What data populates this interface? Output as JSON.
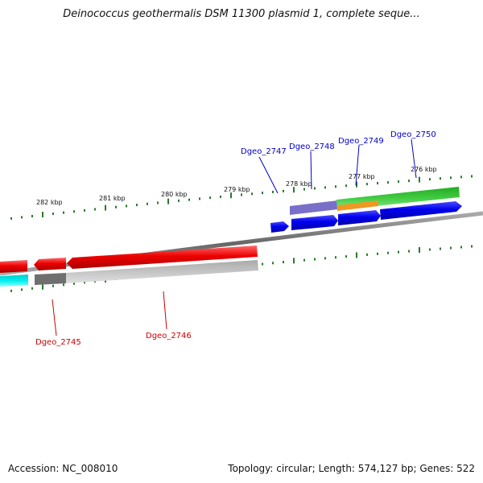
{
  "title": "Deinococcus geothermalis DSM 11300 plasmid 1, complete seque...",
  "footer": {
    "accession": "Accession: NC_008010",
    "summary": "Topology: circular; Length: 574,127 bp; Genes: 522"
  },
  "scale_ticks": [
    "282 kbp",
    "281 kbp",
    "280 kbp",
    "279 kbp",
    "278 kbp",
    "277 kbp",
    "276 kbp"
  ],
  "gene_labels": {
    "top": [
      "Dgeo_2747",
      "Dgeo_2748",
      "Dgeo_2749",
      "Dgeo_2750"
    ],
    "bottom": [
      "Dgeo_2745",
      "Dgeo_2746"
    ]
  },
  "colors": {
    "forward_cds": "#0000ee",
    "reverse_cds": "#ee0000",
    "top_label": "#0000cc",
    "bottom_label": "#cc0000",
    "tick": "#2a7a2a",
    "backbone": "#888888",
    "green_feature": "#33bb33",
    "orange_feature": "#ee9922",
    "purple_feature": "#6655bb",
    "cyan_feature": "#00dddd",
    "gray_feature": "#aaaaaa"
  }
}
